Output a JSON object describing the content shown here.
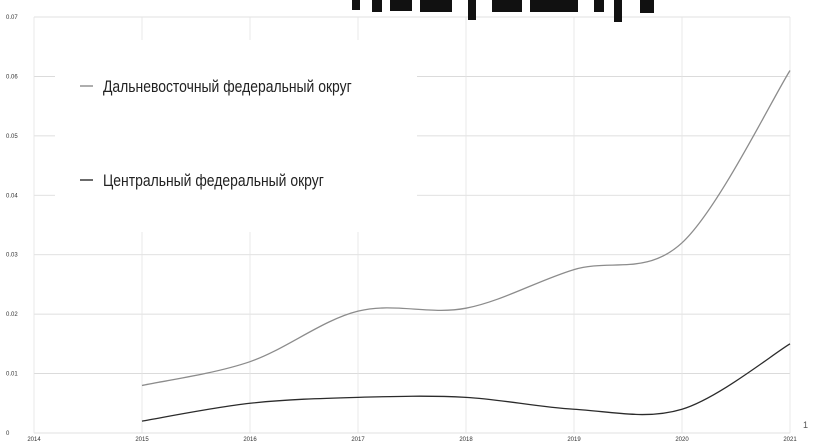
{
  "chart_data": {
    "type": "line",
    "title": "",
    "xlabel": "",
    "ylabel": "",
    "x": [
      2015,
      2016,
      2017,
      2018,
      2019,
      2020,
      2021
    ],
    "xlim": [
      2014,
      2021
    ],
    "x_ticks": [
      "2014",
      "2015",
      "2016",
      "2017",
      "2018",
      "2019",
      "2020",
      "2021"
    ],
    "ylim": [
      0,
      0.07
    ],
    "y_ticks": [
      "0",
      "0.01",
      "0.02",
      "0.03",
      "0.04",
      "0.05",
      "0.06",
      "0.07"
    ],
    "grid": true,
    "legend_position": "top-left",
    "series": [
      {
        "name": "Дальневосточный федеральный округ",
        "color": "#8c8c8c",
        "values": [
          0.008,
          0.012,
          0.0205,
          0.021,
          0.0275,
          0.032,
          0.061
        ]
      },
      {
        "name": "Центральный федеральный округ",
        "color": "#2b2b2b",
        "values": [
          0.002,
          0.005,
          0.006,
          0.006,
          0.004,
          0.004,
          0.015
        ]
      }
    ],
    "annotations": [
      "1"
    ]
  }
}
